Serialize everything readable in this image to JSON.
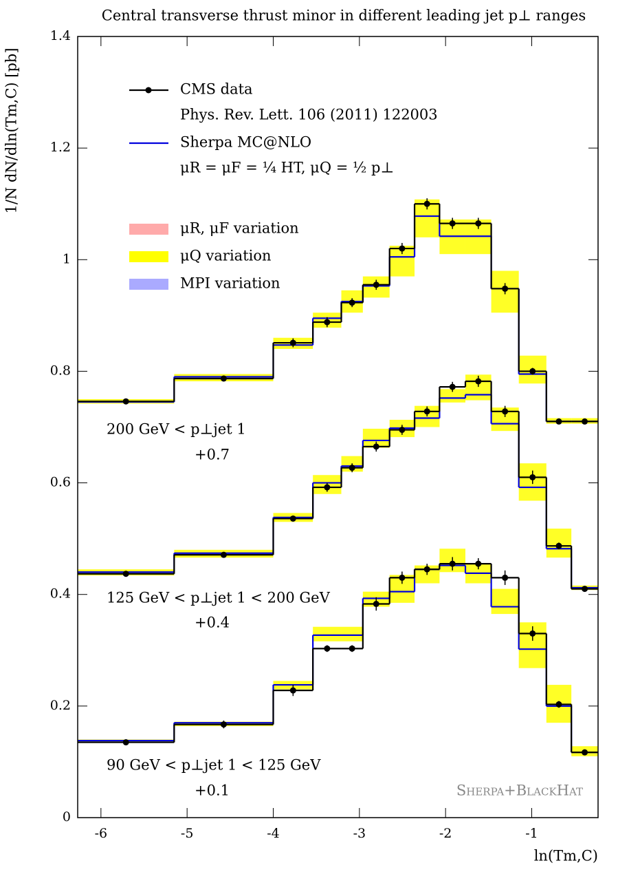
{
  "chart_data": {
    "type": "histogram",
    "title": "Central transverse thrust minor in different leading jet p⊥ ranges",
    "xlabel": "ln(Tm,C)",
    "ylabel": "1/N dN/dln(Tm,C) [pb]",
    "xlim": [
      -6.27,
      -0.23
    ],
    "ylim": [
      0,
      1.4
    ],
    "xticks": [
      -6,
      -5,
      -4,
      -3,
      -2,
      -1
    ],
    "yticks": [
      0,
      0.2,
      0.4,
      0.6,
      0.8,
      1,
      1.2,
      1.4
    ],
    "bins": [
      -6.27,
      -5.15,
      -4.0,
      -3.54,
      -3.21,
      -2.96,
      -2.65,
      -2.36,
      -2.07,
      -1.77,
      -1.47,
      -1.15,
      -0.83,
      -0.54,
      -0.23
    ],
    "legend": [
      {
        "name": "CMS data",
        "note": "Phys. Rev. Lett. 106 (2011) 122003",
        "color": "#000000",
        "kind": "data"
      },
      {
        "name": "Sherpa MC@NLO",
        "note": "μR = μF = ¼ HT,   μQ = ½ p⊥",
        "color": "#0000dd",
        "kind": "line"
      },
      {
        "name": "μR, μF variation",
        "color": "#ffaaaa",
        "kind": "band"
      },
      {
        "name": "μQ variation",
        "color": "#ffff00",
        "kind": "band"
      },
      {
        "name": "MPI variation",
        "color": "#aaaaff",
        "kind": "band"
      }
    ],
    "watermark": "Sherpa+BlackHat",
    "datasets": [
      {
        "label": "200 GeV < p⊥jet 1",
        "offset": "+0.7",
        "data": [
          0.746,
          0.787,
          0.851,
          0.888,
          0.923,
          0.955,
          1.02,
          1.1,
          1.065,
          1.065,
          0.948,
          0.8,
          0.71,
          0.71
        ],
        "errors": [
          0.005,
          0.005,
          0.008,
          0.009,
          0.008,
          0.009,
          0.01,
          0.01,
          0.01,
          0.01,
          0.01,
          0.006,
          0.005,
          0.005
        ],
        "mc": [
          0.745,
          0.79,
          0.847,
          0.895,
          0.925,
          0.953,
          1.005,
          1.078,
          1.042,
          1.042,
          0.948,
          0.795,
          0.71,
          0.71
        ],
        "band_lo": [
          0.742,
          0.782,
          0.84,
          0.878,
          0.905,
          0.932,
          0.97,
          1.04,
          1.01,
          1.01,
          0.905,
          0.778,
          0.706,
          0.706
        ],
        "band_hi": [
          0.75,
          0.795,
          0.86,
          0.905,
          0.945,
          0.97,
          1.025,
          1.108,
          1.072,
          1.072,
          0.98,
          0.828,
          0.716,
          0.716
        ]
      },
      {
        "label": "125 GeV < p⊥jet 1 < 200 GeV",
        "offset": "+0.4",
        "data": [
          0.437,
          0.471,
          0.536,
          0.592,
          0.627,
          0.665,
          0.695,
          0.728,
          0.772,
          0.782,
          0.728,
          0.61,
          0.487,
          0.41
        ],
        "errors": [
          0.004,
          0.005,
          0.005,
          0.008,
          0.008,
          0.009,
          0.009,
          0.009,
          0.009,
          0.01,
          0.01,
          0.012,
          0.006,
          0.004
        ],
        "mc": [
          0.44,
          0.474,
          0.538,
          0.6,
          0.63,
          0.676,
          0.698,
          0.716,
          0.752,
          0.758,
          0.706,
          0.592,
          0.482,
          0.412
        ],
        "band_lo": [
          0.434,
          0.466,
          0.53,
          0.58,
          0.62,
          0.663,
          0.682,
          0.7,
          0.744,
          0.748,
          0.693,
          0.568,
          0.466,
          0.408
        ],
        "band_hi": [
          0.445,
          0.48,
          0.546,
          0.614,
          0.648,
          0.697,
          0.713,
          0.738,
          0.768,
          0.794,
          0.735,
          0.635,
          0.518,
          0.416
        ]
      },
      {
        "label": "90 GeV < p⊥jet 1 < 125 GeV",
        "offset": "+0.1",
        "data": [
          0.135,
          0.167,
          0.228,
          0.303,
          0.303,
          0.383,
          0.43,
          0.445,
          0.455,
          0.455,
          0.43,
          0.33,
          0.203,
          0.117
        ],
        "errors": [
          0.004,
          0.007,
          0.01,
          0.006,
          0.006,
          0.012,
          0.011,
          0.01,
          0.012,
          0.01,
          0.013,
          0.013,
          0.006,
          0.004
        ],
        "mc": [
          0.138,
          0.17,
          0.238,
          0.327,
          0.327,
          0.393,
          0.405,
          0.445,
          0.452,
          0.438,
          0.378,
          0.302,
          0.2,
          0.117
        ],
        "band_lo": [
          0.134,
          0.164,
          0.23,
          0.316,
          0.316,
          0.378,
          0.385,
          0.42,
          0.44,
          0.42,
          0.365,
          0.268,
          0.17,
          0.11
        ],
        "band_hi": [
          0.14,
          0.172,
          0.245,
          0.342,
          0.342,
          0.405,
          0.435,
          0.452,
          0.482,
          0.455,
          0.41,
          0.35,
          0.238,
          0.128
        ]
      }
    ],
    "label_positions": "in-plot"
  }
}
